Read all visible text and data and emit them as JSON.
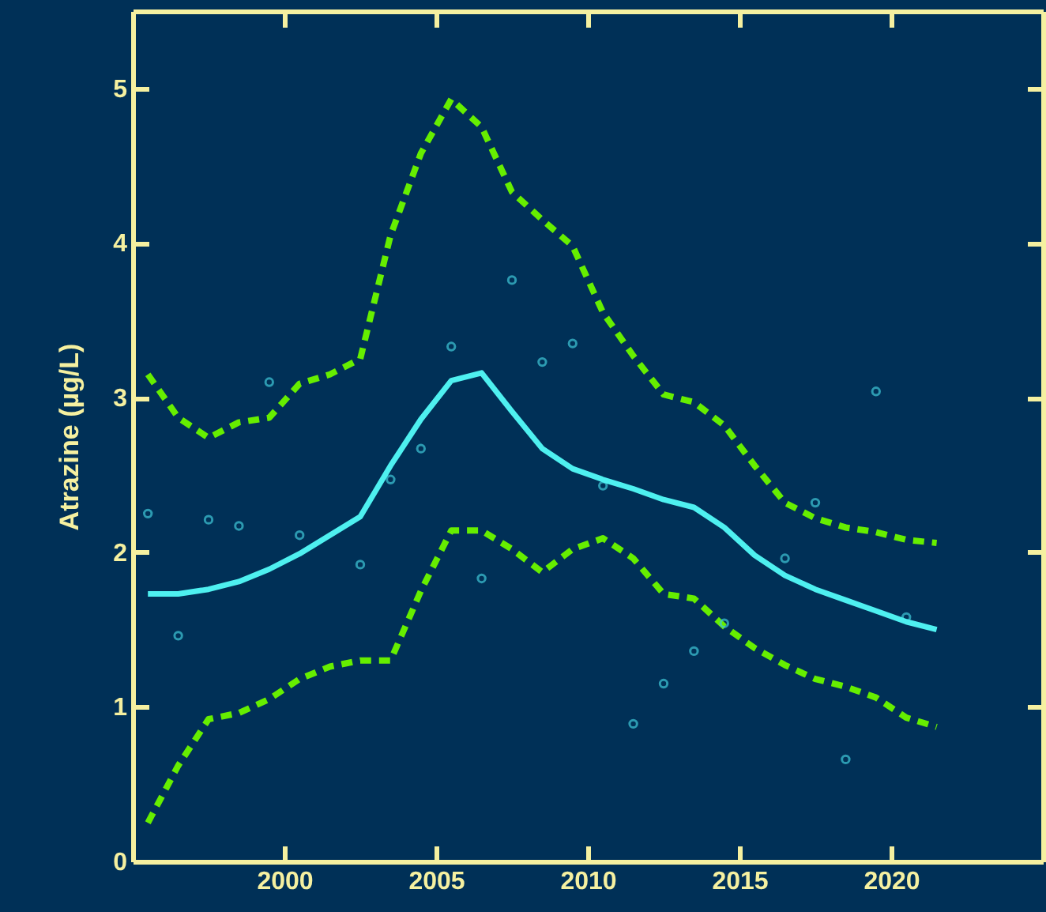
{
  "chart_data": {
    "type": "line",
    "ylabel": "Atrazine (µg/L)",
    "xlim": [
      1995,
      2025
    ],
    "xticks": [
      2000,
      2005,
      2010,
      2015,
      2020
    ],
    "ylim": [
      0,
      5.5
    ],
    "yticks": [
      0,
      1,
      2,
      3,
      4,
      5
    ],
    "series": [
      {
        "type": "line",
        "line_style": "dashed",
        "color": "#66ee00",
        "x": [
          1995.5,
          1996.5,
          1997.5,
          1998.5,
          1999.5,
          2000.5,
          2001.5,
          2002.5,
          2003.5,
          2004.5,
          2005.5,
          2006.5,
          2007.5,
          2008.5,
          2009.5,
          2010.5,
          2011.5,
          2012.5,
          2013.5,
          2014.5,
          2015.5,
          2016.5,
          2017.5,
          2018.5,
          2019.5,
          2020.5,
          2021.5
        ],
        "values": [
          3.15,
          2.87,
          2.74,
          2.84,
          2.87,
          3.09,
          3.15,
          3.25,
          4.05,
          4.58,
          4.93,
          4.75,
          4.33,
          4.15,
          3.98,
          3.55,
          3.27,
          3.02,
          2.97,
          2.82,
          2.56,
          2.32,
          2.22,
          2.16,
          2.13,
          2.08,
          2.06
        ]
      },
      {
        "type": "line",
        "line_style": "dashed",
        "color": "#66ee00",
        "x": [
          1995.5,
          1996.5,
          1997.5,
          1998.5,
          1999.5,
          2000.5,
          2001.5,
          2002.5,
          2003.5,
          2004.5,
          2005.5,
          2006.5,
          2007.5,
          2008.5,
          2009.5,
          2010.5,
          2011.5,
          2012.5,
          2013.5,
          2014.5,
          2015.5,
          2016.5,
          2017.5,
          2018.5,
          2019.5,
          2020.5,
          2021.5
        ],
        "values": [
          0.25,
          0.62,
          0.92,
          0.96,
          1.05,
          1.18,
          1.26,
          1.3,
          1.3,
          1.75,
          2.14,
          2.14,
          2.02,
          1.87,
          2.02,
          2.09,
          1.96,
          1.73,
          1.7,
          1.52,
          1.38,
          1.27,
          1.18,
          1.13,
          1.06,
          0.93,
          0.87
        ]
      },
      {
        "type": "scatter",
        "marker": "circle",
        "color": "#3fc8d8",
        "x": [
          1995.5,
          1996.5,
          1997.5,
          1998.5,
          1999.5,
          2000.5,
          2002.5,
          2003.5,
          2004.5,
          2005.5,
          2006.5,
          2007.5,
          2008.5,
          2009.5,
          2010.5,
          2011.5,
          2012.5,
          2013.5,
          2014.5,
          2016.5,
          2017.5,
          2018.5,
          2019.5,
          2020.5
        ],
        "values": [
          2.25,
          1.46,
          2.21,
          2.17,
          3.1,
          2.11,
          1.92,
          2.47,
          2.67,
          3.33,
          1.83,
          3.76,
          3.23,
          3.35,
          2.43,
          0.89,
          1.15,
          1.36,
          1.54,
          1.96,
          2.32,
          0.66,
          3.04,
          1.58
        ]
      },
      {
        "type": "line",
        "line_style": "solid",
        "color": "#4ef0f0",
        "x": [
          1995.5,
          1996.5,
          1997.5,
          1998.5,
          1999.5,
          2000.5,
          2001.5,
          2002.5,
          2003.5,
          2004.5,
          2005.5,
          2006.5,
          2007.5,
          2008.5,
          2009.5,
          2010.5,
          2011.5,
          2012.5,
          2013.5,
          2014.5,
          2015.5,
          2016.5,
          2017.5,
          2018.5,
          2019.5,
          2020.5,
          2021.5
        ],
        "values": [
          1.73,
          1.73,
          1.76,
          1.81,
          1.89,
          1.99,
          2.11,
          2.23,
          2.56,
          2.86,
          3.11,
          3.16,
          2.91,
          2.67,
          2.54,
          2.47,
          2.41,
          2.34,
          2.29,
          2.16,
          1.98,
          1.85,
          1.76,
          1.69,
          1.62,
          1.55,
          1.5
        ]
      }
    ]
  }
}
